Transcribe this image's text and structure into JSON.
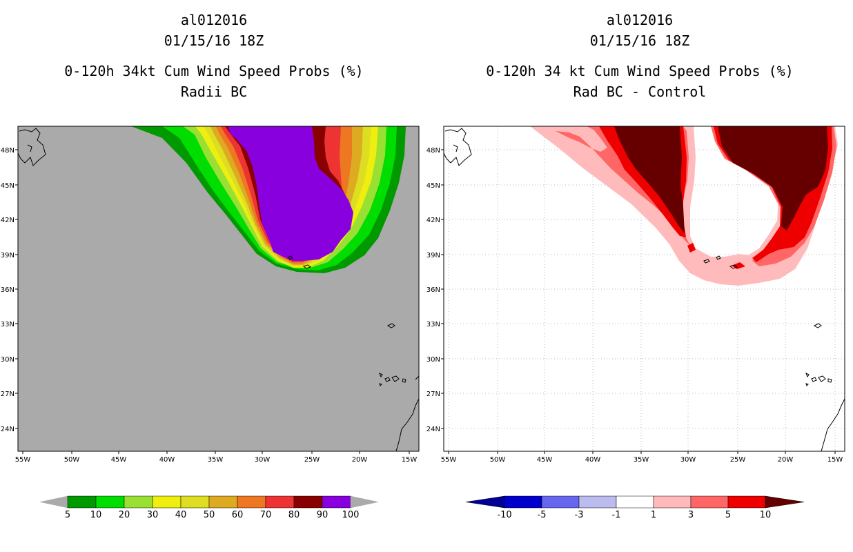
{
  "chart_data": [
    {
      "type": "heatmap",
      "storm_id": "al012016",
      "datetime": "01/15/16 18Z",
      "title": "0-120h 34kt Cum Wind Speed Probs (%)",
      "subtitle": "Radii BC",
      "xlabels": [
        "55W",
        "50W",
        "45W",
        "40W",
        "35W",
        "30W",
        "25W",
        "20W",
        "15W"
      ],
      "ylabels": [
        "48N",
        "45N",
        "42N",
        "39N",
        "36N",
        "33N",
        "30N",
        "27N",
        "24N"
      ],
      "xlim": [
        -55,
        -15
      ],
      "ylim": [
        22,
        50
      ],
      "colorbar": {
        "labels": [
          "5",
          "10",
          "20",
          "30",
          "40",
          "50",
          "60",
          "70",
          "80",
          "90",
          "100"
        ],
        "colors": [
          "#009900",
          "#00dd00",
          "#99e033",
          "#eeee11",
          "#dddd22",
          "#ddaa22",
          "#ee7722",
          "#ee3333",
          "#880000",
          "#8800dd"
        ],
        "extend_colors": {
          "low": "#aaaaaa",
          "high": "#aaaaaa"
        }
      },
      "background_color": "#aaaaaa"
    },
    {
      "type": "heatmap",
      "storm_id": "al012016",
      "datetime": "01/15/16 18Z",
      "title": "0-120h 34 kt Cum Wind Speed Probs (%)",
      "subtitle": "Rad BC - Control",
      "xlabels": [
        "55W",
        "50W",
        "45W",
        "40W",
        "35W",
        "30W",
        "25W",
        "20W",
        "15W"
      ],
      "ylabels": [
        "48N",
        "45N",
        "42N",
        "39N",
        "36N",
        "33N",
        "30N",
        "27N",
        "24N"
      ],
      "xlim": [
        -55,
        -15
      ],
      "ylim": [
        22,
        50
      ],
      "colorbar": {
        "labels": [
          "-10",
          "-5",
          "-3",
          "-1",
          "1",
          "3",
          "5",
          "10"
        ],
        "colors": [
          "#0000cc",
          "#6666ee",
          "#bbbbee",
          "#ffffff",
          "#ffbbbb",
          "#ff6666",
          "#ee0000"
        ],
        "extend_colors": {
          "low": "#000099",
          "high": "#660000"
        }
      },
      "background_color": "#ffffff"
    }
  ]
}
